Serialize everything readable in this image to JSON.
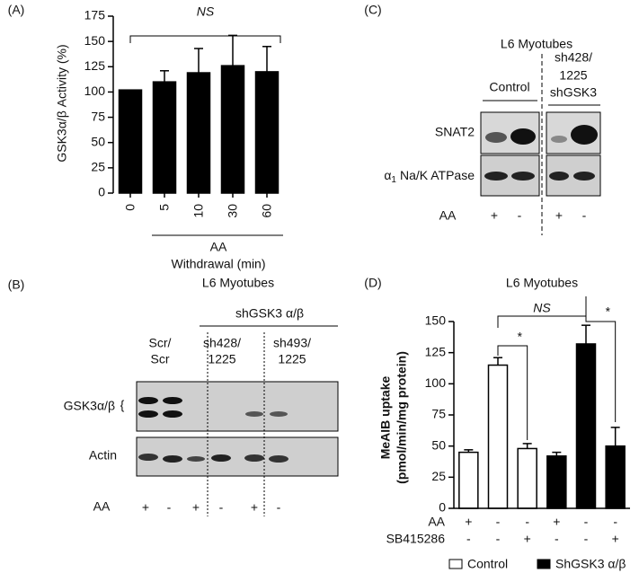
{
  "chart_data": [
    {
      "type": "bar",
      "panel": "(A)",
      "ylabel": "GSK3α/β Activity (%)",
      "categories": [
        "0",
        "5",
        "10",
        "30",
        "60"
      ],
      "values": [
        102,
        110,
        119,
        126,
        120
      ],
      "errors": [
        null,
        11,
        24,
        30,
        25
      ],
      "color": "#000000",
      "ylim": [
        0,
        175
      ],
      "yticks": [
        0,
        25,
        50,
        75,
        100,
        125,
        150,
        175
      ],
      "annotation": "NS",
      "x_group_label": [
        "AA",
        "Withdrawal (min)"
      ]
    },
    {
      "type": "bar",
      "panel": "(D)",
      "title": "L6 Myotubes",
      "ylabel": [
        "MeAIB uptake",
        "(pmol/min/mg protein)"
      ],
      "categories": [
        null,
        null,
        null,
        null,
        null,
        null
      ],
      "series": [
        {
          "name": "Control",
          "color": "#ffffff",
          "values": [
            45,
            115,
            48,
            null,
            null,
            null
          ],
          "errors": [
            2,
            6,
            4,
            null,
            null,
            null
          ]
        },
        {
          "name": "ShGSK3 α/β",
          "color": "#000000",
          "values": [
            null,
            null,
            null,
            42,
            132,
            50
          ],
          "errors": [
            null,
            null,
            null,
            3,
            15,
            15
          ]
        }
      ],
      "ylim": [
        0,
        150
      ],
      "yticks": [
        0,
        25,
        50,
        75,
        100,
        125,
        150
      ],
      "annotations": [
        "NS",
        "*",
        "*"
      ],
      "conditions": [
        {
          "label": "AA",
          "signs": [
            "+",
            "-",
            "-",
            "+",
            "-",
            "-"
          ]
        },
        {
          "label": "SB415286",
          "signs": [
            "-",
            "-",
            "+",
            "-",
            "-",
            "+"
          ]
        }
      ]
    }
  ],
  "blots": {
    "c": {
      "panel": "(C)",
      "title": "L6 Myotubes",
      "groups": [
        [
          "Control"
        ],
        [
          "sh428/",
          "1225",
          "shGSK3"
        ]
      ],
      "rows": [
        "SNAT2",
        [
          "α",
          "1",
          "Na/K ATPase"
        ]
      ],
      "aa_label": "AA",
      "aa_signs": [
        "+",
        "-",
        "+",
        "-"
      ]
    },
    "b": {
      "panel": "(B)",
      "title": "L6 Myotubes",
      "header": "shGSK3 α/β",
      "groups": [
        [
          "Scr/",
          "Scr"
        ],
        [
          "sh428/",
          "1225"
        ],
        [
          "sh493/",
          "1225"
        ]
      ],
      "rows": [
        "GSK3α/β",
        "{",
        "Actin"
      ],
      "aa_label": "AA",
      "aa_signs": [
        "+",
        "-",
        "+",
        "-",
        "+",
        "-"
      ]
    }
  }
}
